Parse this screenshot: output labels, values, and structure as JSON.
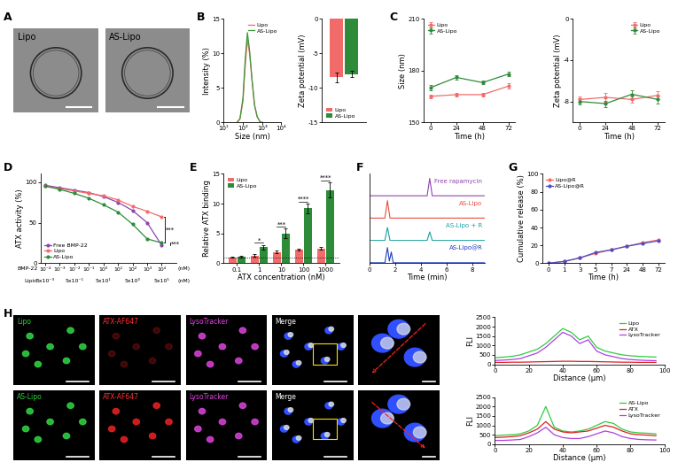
{
  "chart_data": [
    {
      "panel": "B",
      "type": "line",
      "log": "x",
      "x": [
        50,
        70,
        100,
        130,
        170,
        220,
        300,
        400,
        550,
        800,
        1000
      ],
      "series": [
        {
          "name": "Lipo",
          "color": "#f26b6b",
          "values": [
            0,
            0.5,
            3,
            8,
            12,
            10,
            6,
            2.5,
            0.8,
            0,
            0
          ]
        },
        {
          "name": "AS-Lipo",
          "color": "#3a9a3a",
          "values": [
            0,
            0.5,
            3.5,
            9,
            13,
            10.5,
            6,
            2.5,
            0.8,
            0,
            0
          ]
        }
      ],
      "xlabel": "Size (nm)",
      "ylabel": "Intensity (%)",
      "xlim": [
        10,
        10000
      ],
      "xticks": [
        {
          "value": 10,
          "label": "10¹"
        },
        {
          "value": 100,
          "label": "10²"
        },
        {
          "value": 1000,
          "label": "10³"
        },
        {
          "value": 10000,
          "label": "10⁴"
        }
      ],
      "ylim": [
        0,
        15
      ],
      "yticks": [
        0,
        5,
        10,
        15
      ],
      "legend": "upper right"
    },
    {
      "panel": "B",
      "type": "bar",
      "categories": [
        null
      ],
      "series": [
        {
          "name": "Lipo",
          "color": "#f26b6b",
          "values": [
            -8.5
          ],
          "errors": [
            0.7
          ]
        },
        {
          "name": "AS-Lipo",
          "color": "#2e8b3a",
          "values": [
            -8.0
          ],
          "errors": [
            0.5
          ]
        }
      ],
      "ylabel": "Zeta potential (mV)",
      "ylim": [
        -15,
        0
      ],
      "yticks": [
        -15,
        -10,
        -5,
        0
      ],
      "legend": "lower left"
    },
    {
      "panel": "C",
      "type": "line",
      "x": [
        0,
        24,
        48,
        72
      ],
      "series": [
        {
          "name": "Lipo",
          "color": "#f26b6b",
          "marker": "circle",
          "values": [
            165,
            166,
            166,
            171
          ],
          "errors": [
            1,
            1,
            1,
            1.5
          ]
        },
        {
          "name": "AS-Lipo",
          "color": "#2e8b3a",
          "marker": "circle",
          "values": [
            170,
            176,
            173,
            178
          ],
          "errors": [
            1.5,
            1.2,
            1,
            1.5
          ]
        }
      ],
      "xlabel": "Time (h)",
      "ylabel": "Size (nm)",
      "xlim": [
        -6,
        78
      ],
      "xticks": [
        0,
        24,
        48,
        72
      ],
      "ylim": [
        150,
        210
      ],
      "yticks": [
        150,
        180,
        210
      ],
      "legend": "upper left"
    },
    {
      "panel": "C",
      "type": "line",
      "x": [
        0,
        24,
        48,
        72
      ],
      "series": [
        {
          "name": "Lipo",
          "color": "#f26b6b",
          "marker": "circle",
          "values": [
            -7.8,
            -7.6,
            -7.8,
            -7.4
          ],
          "errors": [
            0.3,
            0.4,
            0.3,
            0.4
          ]
        },
        {
          "name": "AS-Lipo",
          "color": "#2e8b3a",
          "marker": "circle",
          "values": [
            -8.0,
            -8.2,
            -7.3,
            -7.8
          ],
          "errors": [
            0.3,
            0.3,
            0.4,
            0.4
          ]
        }
      ],
      "xlabel": "Time (h)",
      "ylabel": "Zeta potential (mV)",
      "xlim": [
        -6,
        78
      ],
      "xticks": [
        0,
        24,
        48,
        72
      ],
      "ylim": [
        -10,
        0
      ],
      "yticks": [
        -8,
        -4,
        0
      ],
      "legend": "upper right"
    },
    {
      "panel": "D",
      "type": "line",
      "log": "x",
      "x": [
        0.0001,
        0.001,
        0.01,
        0.1,
        1,
        10,
        100,
        1000,
        10000
      ],
      "series": [
        {
          "name": "Free BMP-22",
          "color": "#8e44ad",
          "marker": "circle",
          "values": [
            96,
            93,
            90,
            87,
            82,
            75,
            65,
            50,
            22
          ]
        },
        {
          "name": "Lipo",
          "color": "#f26b6b",
          "marker": "circle",
          "values": [
            95,
            92,
            89,
            86,
            83,
            78,
            70,
            64,
            57
          ]
        },
        {
          "name": "AS-Lipo",
          "color": "#2e8b3a",
          "marker": "circle",
          "values": [
            95,
            91,
            86,
            80,
            72,
            63,
            48,
            30,
            25
          ]
        }
      ],
      "ylabel": "ATX activity (%)",
      "xlim": [
        5e-05,
        100000
      ],
      "xticks": [
        {
          "value": 0.0001,
          "label": "10⁻⁴"
        },
        {
          "value": 0.001,
          "label": "10⁻³"
        },
        {
          "value": 0.01,
          "label": "10⁻²"
        },
        {
          "value": 0.1,
          "label": "10⁻¹"
        },
        {
          "value": 1,
          "label": "10⁰"
        },
        {
          "value": 10,
          "label": "10¹"
        },
        {
          "value": 100,
          "label": "10²"
        },
        {
          "value": 1000,
          "label": "10³"
        },
        {
          "value": 10000,
          "label": "10⁴"
        }
      ],
      "lipid_ticks": [
        {
          "value": 0.0001,
          "label": "5x10⁻³"
        },
        {
          "value": 0.01,
          "label": "5x10⁻¹"
        },
        {
          "value": 1,
          "label": "5x10¹"
        },
        {
          "value": 100,
          "label": "5x10³"
        },
        {
          "value": 10000,
          "label": "5x10⁵"
        }
      ],
      "x_rows": [
        "BMP-22",
        "Lipid"
      ],
      "x_unit": "(nM)",
      "ylim": [
        0,
        110
      ],
      "yticks": [
        0,
        50,
        100
      ],
      "legend": "lower left",
      "significance": [
        {
          "series": [
            "Lipo",
            "AS-Lipo"
          ],
          "label": "***"
        },
        {
          "series": [
            "Free BMP-22",
            "AS-Lipo"
          ],
          "label": "***"
        }
      ]
    },
    {
      "panel": "E",
      "type": "bar",
      "categories": [
        "0.1",
        "1",
        "10",
        "100",
        "1000"
      ],
      "series": [
        {
          "name": "Lipo",
          "color": "#f26b6b",
          "values": [
            1.0,
            1.3,
            1.9,
            2.3,
            2.5
          ],
          "errors": [
            0.1,
            0.2,
            0.2,
            0.2,
            0.2
          ]
        },
        {
          "name": "AS-Lipo",
          "color": "#2e8b3a",
          "values": [
            1.1,
            2.7,
            5.0,
            9.2,
            12.3
          ],
          "errors": [
            0.1,
            0.4,
            0.8,
            0.8,
            1.3
          ]
        }
      ],
      "xlabel": "ATX concentration (nM)",
      "ylabel": "Relative ATX binding",
      "ylim": [
        0,
        15
      ],
      "yticks": [
        0,
        5,
        10,
        15
      ],
      "legend": "upper left",
      "reference_line": 1,
      "significance": [
        null,
        "*",
        "***",
        "****",
        "****"
      ]
    },
    {
      "panel": "F",
      "type": "chromatogram",
      "tick_labels": "x",
      "series": [
        {
          "name": "Free rapamycin",
          "color": "#8e44ad",
          "x": [
            0,
            4.5,
            4.7,
            4.9,
            9
          ],
          "values": [
            0.02,
            0.02,
            0.8,
            0.02,
            0.02
          ]
        },
        {
          "name": "AS-Lipo",
          "color": "#e74c3c",
          "x": [
            0,
            1.2,
            1.4,
            1.6,
            9
          ],
          "values": [
            0.02,
            0.02,
            0.8,
            0.02,
            0.02
          ]
        },
        {
          "name": "AS-Lipo + R",
          "color": "#17a2a2",
          "x": [
            0,
            1.2,
            1.4,
            1.6,
            4.5,
            4.7,
            4.9,
            9
          ],
          "values": [
            0.02,
            0.02,
            0.6,
            0.02,
            0.02,
            0.4,
            0.02,
            0.02
          ]
        },
        {
          "name": "AS-Lipo@R",
          "color": "#1f3fbf",
          "x": [
            0,
            1.2,
            1.4,
            1.55,
            1.7,
            1.85,
            9
          ],
          "values": [
            0.02,
            0.02,
            0.7,
            0.1,
            0.5,
            0.02,
            0.02
          ]
        }
      ],
      "xlabel": "Time (min)",
      "xlim": [
        0,
        9
      ],
      "xticks": [
        0,
        2,
        4,
        6,
        8
      ],
      "ylim": [
        0,
        1
      ]
    },
    {
      "panel": "G",
      "type": "line",
      "categories": [
        "0",
        "1",
        "3",
        "5",
        "7",
        "24",
        "48",
        "72"
      ],
      "series": [
        {
          "name": "Lipo@R",
          "color": "#f26b6b",
          "marker": "circle",
          "values": [
            0,
            2,
            6,
            11,
            15,
            19,
            23,
            26
          ]
        },
        {
          "name": "AS-Lipo@R",
          "color": "#4b4fc4",
          "marker": "circle",
          "values": [
            0,
            2,
            6,
            12,
            15,
            19,
            22,
            25
          ]
        }
      ],
      "xlabel": "Time (h)",
      "ylabel": "Cumulative release (%)",
      "ylim": [
        0,
        100
      ],
      "yticks": [
        0,
        20,
        40,
        60,
        80,
        100
      ],
      "legend": "upper left"
    },
    {
      "panel": "H",
      "type": "line",
      "x": [
        0,
        5,
        10,
        15,
        20,
        25,
        30,
        35,
        40,
        45,
        50,
        55,
        60,
        65,
        70,
        75,
        80,
        85,
        90,
        95
      ],
      "series": [
        {
          "name": "Lipo",
          "color": "#2ecc40",
          "values": [
            350,
            380,
            420,
            500,
            650,
            800,
            1100,
            1500,
            1900,
            1700,
            1300,
            1500,
            900,
            700,
            600,
            500,
            450,
            420,
            400,
            380
          ]
        },
        {
          "name": "ATX",
          "color": "#e02020",
          "values": [
            100,
            100,
            110,
            110,
            120,
            130,
            140,
            150,
            160,
            160,
            150,
            150,
            140,
            130,
            120,
            110,
            110,
            100,
            100,
            100
          ]
        },
        {
          "name": "LysoTracker",
          "color": "#b040e0",
          "values": [
            200,
            220,
            250,
            300,
            450,
            600,
            900,
            1300,
            1700,
            1500,
            1100,
            1300,
            700,
            500,
            400,
            300,
            250,
            220,
            200,
            190
          ]
        }
      ],
      "xlabel": "Distance (μm)",
      "ylabel": "FLI",
      "xlim": [
        0,
        100
      ],
      "xticks": [
        0,
        20,
        40,
        60,
        80,
        100
      ],
      "ylim": [
        0,
        2500
      ],
      "yticks": [
        0,
        500,
        1000,
        1500,
        2000,
        2500
      ],
      "legend": "upper right"
    },
    {
      "panel": "H",
      "type": "line",
      "x": [
        0,
        5,
        10,
        15,
        20,
        25,
        30,
        35,
        40,
        45,
        50,
        55,
        60,
        65,
        70,
        75,
        80,
        85,
        90,
        95
      ],
      "series": [
        {
          "name": "AS-Lipo",
          "color": "#2ecc40",
          "values": [
            450,
            480,
            500,
            550,
            700,
            1000,
            2000,
            900,
            700,
            650,
            700,
            800,
            1000,
            1200,
            1100,
            800,
            650,
            600,
            580,
            550
          ]
        },
        {
          "name": "ATX",
          "color": "#e02020",
          "values": [
            350,
            370,
            400,
            450,
            600,
            800,
            1200,
            800,
            650,
            600,
            650,
            700,
            850,
            1000,
            900,
            700,
            550,
            500,
            480,
            450
          ]
        },
        {
          "name": "LysoTracker",
          "color": "#b040e0",
          "values": [
            200,
            200,
            220,
            250,
            400,
            600,
            900,
            500,
            350,
            300,
            300,
            400,
            550,
            700,
            600,
            400,
            300,
            250,
            230,
            220
          ]
        }
      ],
      "xlabel": "Distance (μm)",
      "ylabel": "FLI",
      "xlim": [
        0,
        100
      ],
      "xticks": [
        0,
        20,
        40,
        60,
        80,
        100
      ],
      "ylim": [
        0,
        2500
      ],
      "yticks": [
        0,
        500,
        1000,
        1500,
        2000,
        2500
      ],
      "legend": "upper right"
    }
  ],
  "images": [
    {
      "panel": "A",
      "labels": [
        "Lipo",
        "AS-Lipo"
      ]
    },
    {
      "panel": "H",
      "rows": [
        [
          "Lipo",
          "ATX-AF647",
          "LysoTracker",
          "Merge"
        ],
        [
          "AS-Lipo",
          "ATX-AF647",
          "LysoTracker",
          "Merge"
        ]
      ]
    }
  ]
}
